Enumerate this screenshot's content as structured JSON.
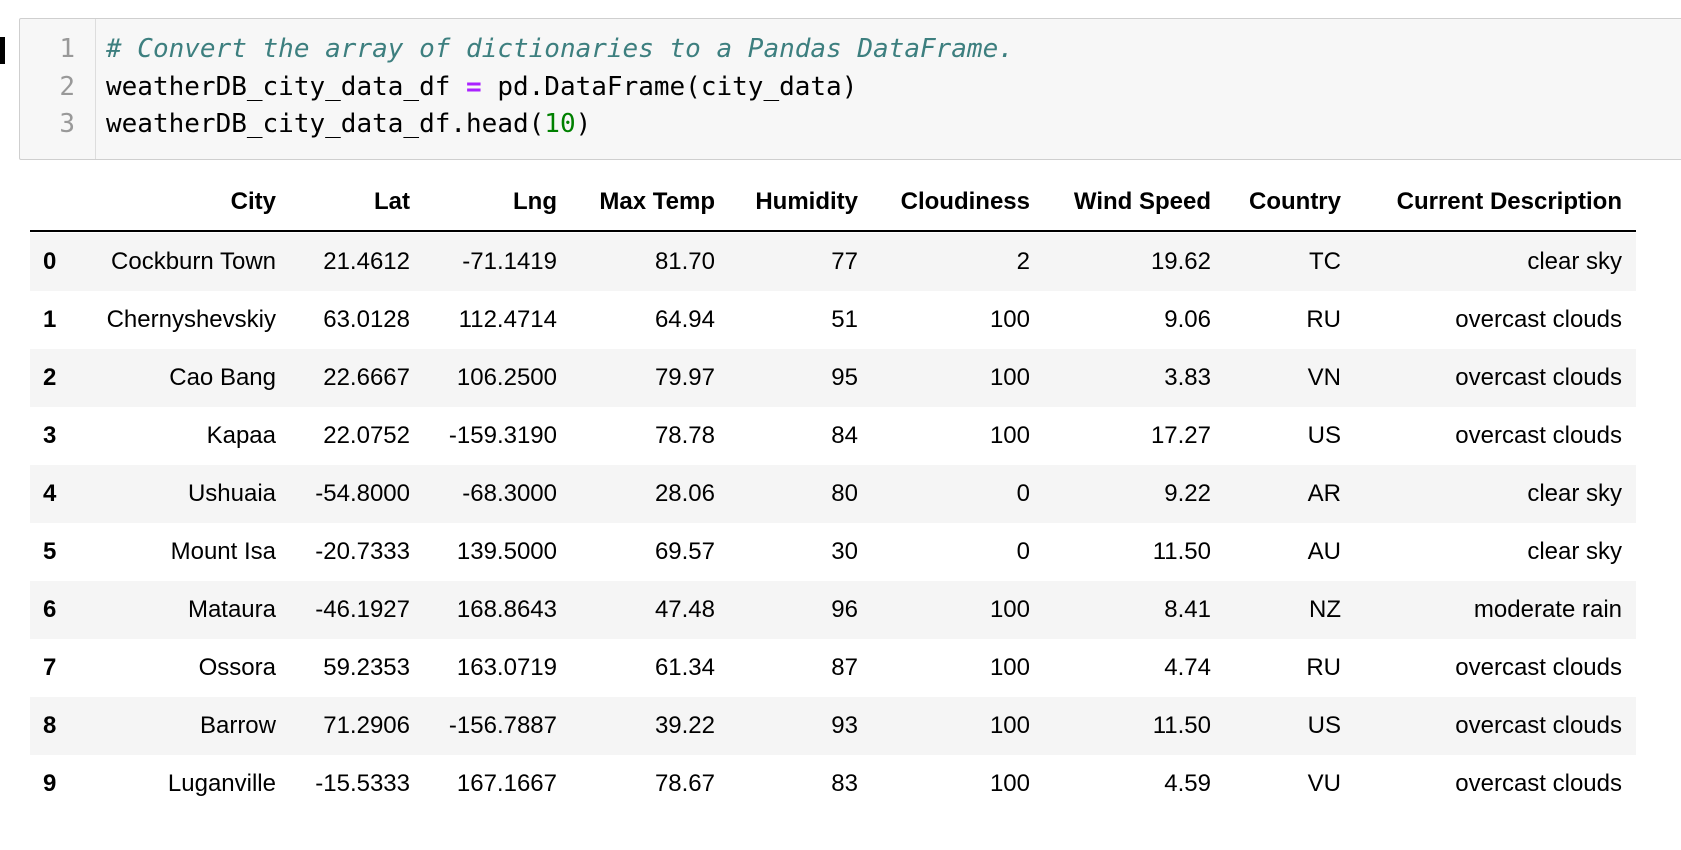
{
  "code": {
    "lines": [
      {
        "number": "1",
        "tokens": [
          {
            "text": "# Convert the array of dictionaries to a Pandas DataFrame.",
            "kind": "comment"
          }
        ]
      },
      {
        "number": "2",
        "tokens": [
          {
            "text": "weatherDB_city_data_df ",
            "kind": "plain"
          },
          {
            "text": "=",
            "kind": "operator"
          },
          {
            "text": " pd.DataFrame(city_data)",
            "kind": "plain"
          }
        ]
      },
      {
        "number": "3",
        "tokens": [
          {
            "text": "weatherDB_city_data_df.head(",
            "kind": "plain"
          },
          {
            "text": "10",
            "kind": "number"
          },
          {
            "text": ")",
            "kind": "plain"
          }
        ]
      }
    ]
  },
  "table": {
    "columns": [
      "City",
      "Lat",
      "Lng",
      "Max Temp",
      "Humidity",
      "Cloudiness",
      "Wind Speed",
      "Country",
      "Current Description"
    ],
    "rows": [
      {
        "index": "0",
        "cells": [
          "Cockburn Town",
          "21.4612",
          "-71.1419",
          "81.70",
          "77",
          "2",
          "19.62",
          "TC",
          "clear sky"
        ]
      },
      {
        "index": "1",
        "cells": [
          "Chernyshevskiy",
          "63.0128",
          "112.4714",
          "64.94",
          "51",
          "100",
          "9.06",
          "RU",
          "overcast clouds"
        ]
      },
      {
        "index": "2",
        "cells": [
          "Cao Bang",
          "22.6667",
          "106.2500",
          "79.97",
          "95",
          "100",
          "3.83",
          "VN",
          "overcast clouds"
        ]
      },
      {
        "index": "3",
        "cells": [
          "Kapaa",
          "22.0752",
          "-159.3190",
          "78.78",
          "84",
          "100",
          "17.27",
          "US",
          "overcast clouds"
        ]
      },
      {
        "index": "4",
        "cells": [
          "Ushuaia",
          "-54.8000",
          "-68.3000",
          "28.06",
          "80",
          "0",
          "9.22",
          "AR",
          "clear sky"
        ]
      },
      {
        "index": "5",
        "cells": [
          "Mount Isa",
          "-20.7333",
          "139.5000",
          "69.57",
          "30",
          "0",
          "11.50",
          "AU",
          "clear sky"
        ]
      },
      {
        "index": "6",
        "cells": [
          "Mataura",
          "-46.1927",
          "168.8643",
          "47.48",
          "96",
          "100",
          "8.41",
          "NZ",
          "moderate rain"
        ]
      },
      {
        "index": "7",
        "cells": [
          "Ossora",
          "59.2353",
          "163.0719",
          "61.34",
          "87",
          "100",
          "4.74",
          "RU",
          "overcast clouds"
        ]
      },
      {
        "index": "8",
        "cells": [
          "Barrow",
          "71.2906",
          "-156.7887",
          "39.22",
          "93",
          "100",
          "11.50",
          "US",
          "overcast clouds"
        ]
      },
      {
        "index": "9",
        "cells": [
          "Luganville",
          "-15.5333",
          "167.1667",
          "78.67",
          "83",
          "100",
          "4.59",
          "VU",
          "overcast clouds"
        ]
      }
    ]
  }
}
